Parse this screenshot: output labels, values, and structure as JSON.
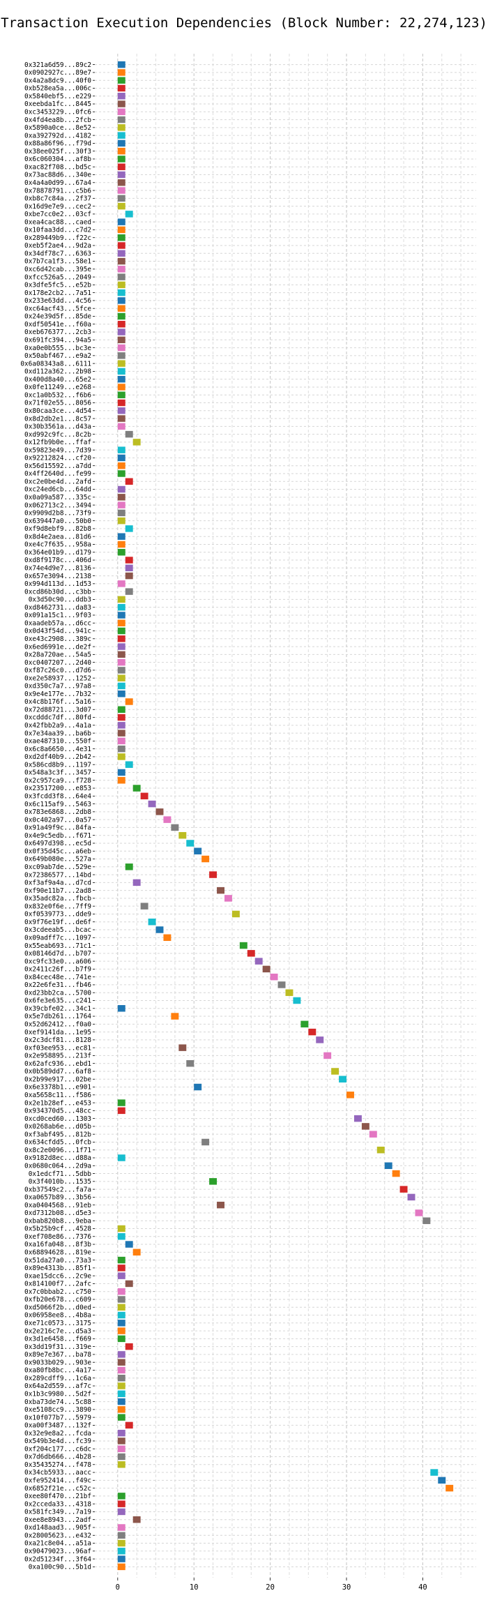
{
  "chart_data": {
    "type": "gantt",
    "title": "Transaction Execution Dependencies (Block Number: 22,274,123)",
    "xlabel": "",
    "ylabel": "",
    "xlim": [
      -3,
      47
    ],
    "xticks": [
      0,
      10,
      20,
      30,
      40
    ],
    "grid": true,
    "legend": "none",
    "palette": [
      "#1f77b4",
      "#ff7f0e",
      "#2ca02c",
      "#d62728",
      "#9467bd",
      "#8c564b",
      "#e377c2",
      "#7f7f7f",
      "#bcbd22",
      "#17becf"
    ],
    "bar_width": 1,
    "transactions": [
      {
        "label": "0x321a6d59...89c2",
        "start": 0
      },
      {
        "label": "0x0902927c...89e7",
        "start": 0
      },
      {
        "label": "0x4a2a8dc9...40f0",
        "start": 0
      },
      {
        "label": "0xb528ea5a...006c",
        "start": 0
      },
      {
        "label": "0x5840ebf5...e229",
        "start": 0
      },
      {
        "label": "0xeebda1fc...8445",
        "start": 0
      },
      {
        "label": "0xc3453229...0fc6",
        "start": 0
      },
      {
        "label": "0x4fd4ea8b...2fcb",
        "start": 0
      },
      {
        "label": "0x5890a0ce...8e52",
        "start": 0
      },
      {
        "label": "0xa392792d...4182",
        "start": 0
      },
      {
        "label": "0x88a86f96...f79d",
        "start": 0
      },
      {
        "label": "0x38ee025f...30f3",
        "start": 0
      },
      {
        "label": "0x6c060304...af8b",
        "start": 0
      },
      {
        "label": "0xac82f708...bd5c",
        "start": 0
      },
      {
        "label": "0x73ac88d6...340e",
        "start": 0
      },
      {
        "label": "0x4a4a0d99...67a4",
        "start": 0
      },
      {
        "label": "0x78878791...c5b6",
        "start": 0
      },
      {
        "label": "0xb8c7c84a...2f37",
        "start": 0
      },
      {
        "label": "0x16d9e7e9...cec2",
        "start": 0
      },
      {
        "label": "0xbe7cc0e2...03cf",
        "start": 1
      },
      {
        "label": "0xea4cac88...caed",
        "start": 0
      },
      {
        "label": "0x10faa3dd...c7d2",
        "start": 0
      },
      {
        "label": "0x289449b9...f22c",
        "start": 0
      },
      {
        "label": "0xeb5f2ae4...9d2a",
        "start": 0
      },
      {
        "label": "0x34df78c7...6363",
        "start": 0
      },
      {
        "label": "0x7b7ca1f3...58e1",
        "start": 0
      },
      {
        "label": "0xc6d42cab...395e",
        "start": 0
      },
      {
        "label": "0xfcc526a5...2049",
        "start": 0
      },
      {
        "label": "0x3dfe5fc5...e52b",
        "start": 0
      },
      {
        "label": "0x178e2cb2...7a51",
        "start": 0
      },
      {
        "label": "0x233e63dd...4c56",
        "start": 0
      },
      {
        "label": "0xc64acf43...5fce",
        "start": 0
      },
      {
        "label": "0x24e39d5f...85de",
        "start": 0
      },
      {
        "label": "0xdf50541e...f60a",
        "start": 0
      },
      {
        "label": "0xeb676377...2cb3",
        "start": 0
      },
      {
        "label": "0x691fc394...94a5",
        "start": 0
      },
      {
        "label": "0xa0e0b555...bc3e",
        "start": 0
      },
      {
        "label": "0x50abf467...e9a2",
        "start": 0
      },
      {
        "label": "0x6a08343a8...6111",
        "start": 0
      },
      {
        "label": "0xd112a362...2b98",
        "start": 0
      },
      {
        "label": "0x400d8a40...65e2",
        "start": 0
      },
      {
        "label": "0x0fe11249...e268",
        "start": 0
      },
      {
        "label": "0xc1a0b532...f6b6",
        "start": 0
      },
      {
        "label": "0x71f02e55...8056",
        "start": 0
      },
      {
        "label": "0x80caa3ce...4d54",
        "start": 0
      },
      {
        "label": "0x8d2db2e1...8c57",
        "start": 0
      },
      {
        "label": "0x30b3561a...d43a",
        "start": 0
      },
      {
        "label": "0xd992c9fc...8c2b",
        "start": 1
      },
      {
        "label": "0x12fb9b0e...ffaf",
        "start": 2
      },
      {
        "label": "0x59823e49...7d39",
        "start": 0
      },
      {
        "label": "0x92212824...cf20",
        "start": 0
      },
      {
        "label": "0x56d15592...a7dd",
        "start": 0
      },
      {
        "label": "0x4ff2640d...fe99",
        "start": 0
      },
      {
        "label": "0xc2e0be4d...2afd",
        "start": 1
      },
      {
        "label": "0xc24ed6cb...64dd",
        "start": 0
      },
      {
        "label": "0x0a09a587...335c",
        "start": 0
      },
      {
        "label": "0x062713c2...3494",
        "start": 0
      },
      {
        "label": "0x9909d2b8...73f9",
        "start": 0
      },
      {
        "label": "0x639447a0...50b0",
        "start": 0
      },
      {
        "label": "0xf9d8ebf9...82b8",
        "start": 1
      },
      {
        "label": "0x8d4e2aea...81d6",
        "start": 0
      },
      {
        "label": "0xe4c7f635...958a",
        "start": 0
      },
      {
        "label": "0x364e01b9...d179",
        "start": 0
      },
      {
        "label": "0xd8f9178c...406d",
        "start": 1
      },
      {
        "label": "0x74e4d9e7...8136",
        "start": 1
      },
      {
        "label": "0x657e3094...2138",
        "start": 1
      },
      {
        "label": "0x994d113d...1d53",
        "start": 0
      },
      {
        "label": "0xcd86b30d...c3bb",
        "start": 1
      },
      {
        "label": "0x3d50c90...ddb3",
        "start": 0
      },
      {
        "label": "0xd8462731...da83",
        "start": 0
      },
      {
        "label": "0x091a15c1...9f03",
        "start": 0
      },
      {
        "label": "0xaadeb57a...d6cc",
        "start": 0
      },
      {
        "label": "0x0d43f54d...941c",
        "start": 0
      },
      {
        "label": "0xe43c2908...389c",
        "start": 0
      },
      {
        "label": "0x6ed6991e...de2f",
        "start": 0
      },
      {
        "label": "0x28a720ae...54a5",
        "start": 0
      },
      {
        "label": "0xc0407207...2d40",
        "start": 0
      },
      {
        "label": "0xf87c26c0...d7d6",
        "start": 0
      },
      {
        "label": "0xe2e58937...1252",
        "start": 0
      },
      {
        "label": "0xd350c7a7...97a8",
        "start": 0
      },
      {
        "label": "0x9e4e177e...7b32",
        "start": 0
      },
      {
        "label": "0x4c8b176f...5a16",
        "start": 1
      },
      {
        "label": "0x72d88721...3d07",
        "start": 0
      },
      {
        "label": "0xcdddc7df...80fd",
        "start": 0
      },
      {
        "label": "0x42fbb2a9...4a1a",
        "start": 0
      },
      {
        "label": "0x7e34aa39...ba6b",
        "start": 0
      },
      {
        "label": "0xae487310...550f",
        "start": 0
      },
      {
        "label": "0x6c8a6650...4e31",
        "start": 0
      },
      {
        "label": "0xd2df40b9...2b42",
        "start": 0
      },
      {
        "label": "0x586cd8b9...1197",
        "start": 1
      },
      {
        "label": "0x548a3c3f...3457",
        "start": 0
      },
      {
        "label": "0x2c957ca9...f728",
        "start": 0
      },
      {
        "label": "0x23517200...e853",
        "start": 2
      },
      {
        "label": "0x3fcdd3f8...64e4",
        "start": 3
      },
      {
        "label": "0x6c115af9...5463",
        "start": 4
      },
      {
        "label": "0x783e6868...2db8",
        "start": 5
      },
      {
        "label": "0x0c402a97...0a57",
        "start": 6
      },
      {
        "label": "0x91a49f9c...84fa",
        "start": 7
      },
      {
        "label": "0x4e9c5edb...f671",
        "start": 8
      },
      {
        "label": "0x6497d398...ec5d",
        "start": 9
      },
      {
        "label": "0x0f35d45c...a6eb",
        "start": 10
      },
      {
        "label": "0x649b080e...527a",
        "start": 11
      },
      {
        "label": "0xc09ab7de...529e",
        "start": 1
      },
      {
        "label": "0x72386577...14bd",
        "start": 12
      },
      {
        "label": "0xf3af9a4a...d7cd",
        "start": 2
      },
      {
        "label": "0xf90e11b7...2ad8",
        "start": 13
      },
      {
        "label": "0x35adc82a...fbcb",
        "start": 14
      },
      {
        "label": "0x832e0f6e...7ff9",
        "start": 3
      },
      {
        "label": "0xf0539773...dde9",
        "start": 15
      },
      {
        "label": "0x9f76e19f...de6f",
        "start": 4
      },
      {
        "label": "0x3cdeeab5...bcac",
        "start": 5
      },
      {
        "label": "0x09adff7c...1097",
        "start": 6
      },
      {
        "label": "0x55eab693...71c1",
        "start": 16
      },
      {
        "label": "0x08146d7d...b707",
        "start": 17
      },
      {
        "label": "0xc9fc33e0...a606",
        "start": 18
      },
      {
        "label": "0x2411c26f...b7f9",
        "start": 19
      },
      {
        "label": "0x84cec48e...741e",
        "start": 20
      },
      {
        "label": "0x22e6fe31...fb46",
        "start": 21
      },
      {
        "label": "0xd23bb2ca...5700",
        "start": 22
      },
      {
        "label": "0x6fe3e635...c241",
        "start": 23
      },
      {
        "label": "0x39cbfe02...34c1",
        "start": 0
      },
      {
        "label": "0x5e7db261...1764",
        "start": 7
      },
      {
        "label": "0x52d62412...f0a0",
        "start": 24
      },
      {
        "label": "0xef9141da...1e95",
        "start": 25
      },
      {
        "label": "0x2c3dcf81...8128",
        "start": 26
      },
      {
        "label": "0xf03ee953...ec81",
        "start": 8
      },
      {
        "label": "0x2e958895...213f",
        "start": 27
      },
      {
        "label": "0x62afc936...ebd1",
        "start": 9
      },
      {
        "label": "0x0b589dd7...6af8",
        "start": 28
      },
      {
        "label": "0x2b99e917...02be",
        "start": 29
      },
      {
        "label": "0x6e3378b1...e901",
        "start": 10
      },
      {
        "label": "0xa5658c11...f586",
        "start": 30
      },
      {
        "label": "0x2e1b28ef...e453",
        "start": 0
      },
      {
        "label": "0x934370d5...48cc",
        "start": 0
      },
      {
        "label": "0xcd0ced60...1303",
        "start": 31
      },
      {
        "label": "0x0268ab6e...d05b",
        "start": 32
      },
      {
        "label": "0xf3abf495...812b",
        "start": 33
      },
      {
        "label": "0x634cfdd5...0fcb",
        "start": 11
      },
      {
        "label": "0x8c2e0096...1f71",
        "start": 34
      },
      {
        "label": "0x9182d8ec...d88a",
        "start": 0
      },
      {
        "label": "0x0680c064...2d9a",
        "start": 35
      },
      {
        "label": "0x1edcf71...5dbb",
        "start": 36
      },
      {
        "label": "0x3f4010b...1535",
        "start": 12
      },
      {
        "label": "0xb37549c2...fa7a",
        "start": 37
      },
      {
        "label": "0xa0657b89...3b56",
        "start": 38
      },
      {
        "label": "0xa0404568...91eb",
        "start": 13
      },
      {
        "label": "0xd7312b08...d5e3",
        "start": 39
      },
      {
        "label": "0xbab820b8...9eba",
        "start": 40
      },
      {
        "label": "0x5b25b9cf...4528",
        "start": 0
      },
      {
        "label": "0xef708e86...7376",
        "start": 0
      },
      {
        "label": "0xa16fa048...8f3b",
        "start": 1
      },
      {
        "label": "0x68894628...819e",
        "start": 2
      },
      {
        "label": "0x51da27a0...73a3",
        "start": 0
      },
      {
        "label": "0x89e4313b...85f1",
        "start": 0
      },
      {
        "label": "0xae15dcc6...2c9e",
        "start": 0
      },
      {
        "label": "0x814100f7...2afc",
        "start": 1
      },
      {
        "label": "0x7c0bbab2...c750",
        "start": 0
      },
      {
        "label": "0xfb20e678...c609",
        "start": 0
      },
      {
        "label": "0xd5066f2b...d0ed",
        "start": 0
      },
      {
        "label": "0x06958ee8...4b8a",
        "start": 0
      },
      {
        "label": "0xe71c0573...3175",
        "start": 0
      },
      {
        "label": "0x2e216c7e...d5a3",
        "start": 0
      },
      {
        "label": "0x3d1e6458...f669",
        "start": 0
      },
      {
        "label": "0x3dd19f31...319e",
        "start": 1
      },
      {
        "label": "0x89e7e367...ba78",
        "start": 0
      },
      {
        "label": "0x9033b029...903e",
        "start": 0
      },
      {
        "label": "0xa80fb8bc...4a17",
        "start": 0
      },
      {
        "label": "0x289cdff9...1c6a",
        "start": 0
      },
      {
        "label": "0x64a2d559...af7c",
        "start": 0
      },
      {
        "label": "0x1b3c9980...5d2f",
        "start": 0
      },
      {
        "label": "0xba73de74...5c88",
        "start": 0
      },
      {
        "label": "0xe5108cc9...3890",
        "start": 0
      },
      {
        "label": "0x10f077b7...5979",
        "start": 0
      },
      {
        "label": "0xa00f3487...132f",
        "start": 1
      },
      {
        "label": "0x32e9e8a2...fcda",
        "start": 0
      },
      {
        "label": "0x549b3e4d...fc39",
        "start": 0
      },
      {
        "label": "0xf204c177...c6dc",
        "start": 0
      },
      {
        "label": "0x7d6db666...4b28",
        "start": 0
      },
      {
        "label": "0x35435274...f478",
        "start": 0
      },
      {
        "label": "0x34cb5933...aacc",
        "start": 41
      },
      {
        "label": "0xfe952414...f49c",
        "start": 42
      },
      {
        "label": "0x6852f21e...c52c",
        "start": 43
      },
      {
        "label": "0xee80f470...21bf",
        "start": 0
      },
      {
        "label": "0x2cceda33...4318",
        "start": 0
      },
      {
        "label": "0x581fc349...7a19",
        "start": 0
      },
      {
        "label": "0xee8e8943...2adf",
        "start": 2
      },
      {
        "label": "0xd148aad3...905f",
        "start": 0
      },
      {
        "label": "0x28005623...e432",
        "start": 0
      },
      {
        "label": "0xa21c8e04...a51a",
        "start": 0
      },
      {
        "label": "0x90479023...96af",
        "start": 0
      },
      {
        "label": "0x2d51234f...3f64",
        "start": 0
      },
      {
        "label": "0xa100c90...5b1d",
        "start": 0
      }
    ]
  }
}
